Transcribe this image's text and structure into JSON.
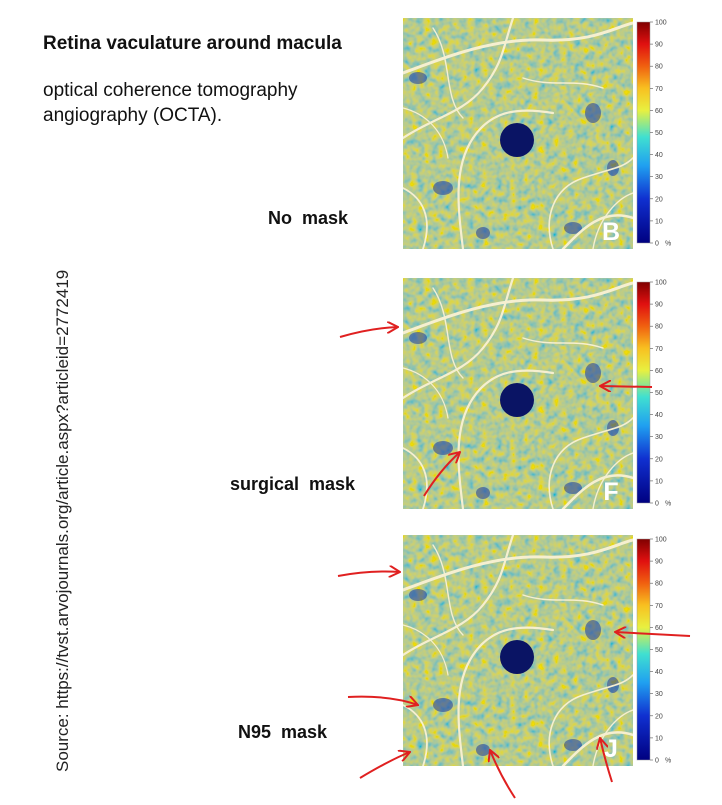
{
  "title": "Retina vaculature around macula",
  "subtitle": [
    "optical coherence tomography",
    "angiography (OCTA)."
  ],
  "source": "Source: https://tvst.arvojournals.org/article.aspx?articleid=2772419",
  "panels": [
    {
      "label": "No  mask",
      "letter": "B"
    },
    {
      "label": "surgical  mask",
      "letter": "F"
    },
    {
      "label": "N95  mask",
      "letter": "J"
    }
  ],
  "colorbar": {
    "ticks": [
      0,
      10,
      20,
      30,
      40,
      50,
      60,
      70,
      80,
      90,
      100
    ],
    "unit": "%"
  }
}
